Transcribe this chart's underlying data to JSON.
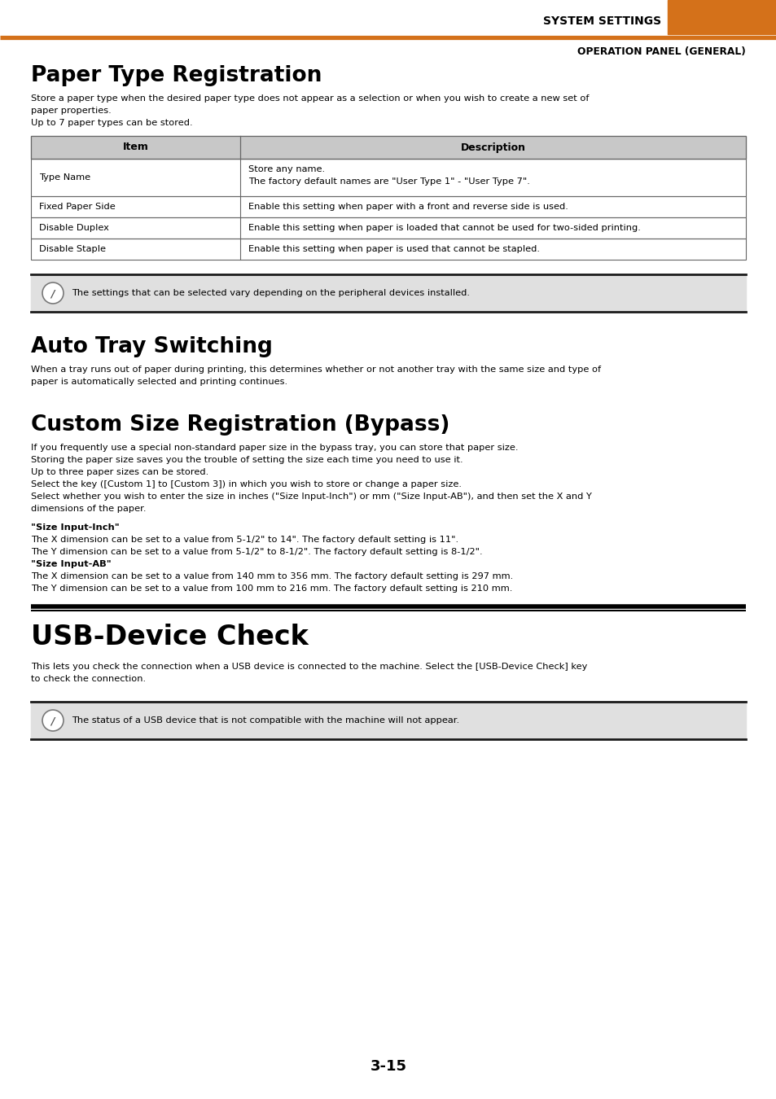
{
  "bg_color": "#ffffff",
  "orange_color": "#D4711A",
  "gray_header": "#C8C8C8",
  "gray_note_bg": "#E0E0E0",
  "table_border": "#666666",
  "dark_line": "#1a1a1a",
  "system_settings_text": "SYSTEM SETTINGS",
  "operation_panel_text": "OPERATION PANEL (GENERAL)",
  "section1_title": "Paper Type Registration",
  "section1_body_lines": [
    "Store a paper type when the desired paper type does not appear as a selection or when you wish to create a new set of",
    "paper properties.",
    "Up to 7 paper types can be stored."
  ],
  "table_headers": [
    "Item",
    "Description"
  ],
  "table_rows": [
    [
      "Type Name",
      "Store any name.\nThe factory default names are \"User Type 1\" - \"User Type 7\"."
    ],
    [
      "Fixed Paper Side",
      "Enable this setting when paper with a front and reverse side is used."
    ],
    [
      "Disable Duplex",
      "Enable this setting when paper is loaded that cannot be used for two-sided printing."
    ],
    [
      "Disable Staple",
      "Enable this setting when paper is used that cannot be stapled."
    ]
  ],
  "note1": "The settings that can be selected vary depending on the peripheral devices installed.",
  "section2_title": "Auto Tray Switching",
  "section2_body_lines": [
    "When a tray runs out of paper during printing, this determines whether or not another tray with the same size and type of",
    "paper is automatically selected and printing continues."
  ],
  "section3_title": "Custom Size Registration (Bypass)",
  "section3_body_lines": [
    "If you frequently use a special non-standard paper size in the bypass tray, you can store that paper size.",
    "Storing the paper size saves you the trouble of setting the size each time you need to use it.",
    "Up to three paper sizes can be stored.",
    "Select the key ([Custom 1] to [Custom 3]) in which you wish to store or change a paper size.",
    "Select whether you wish to enter the size in inches (\"Size Input-Inch\") or mm (\"Size Input-AB\"), and then set the X and Y",
    "dimensions of the paper."
  ],
  "size_inch_header": "\"Size Input-Inch\"",
  "size_inch_body_lines": [
    "The X dimension can be set to a value from 5-1/2\" to 14\". The factory default setting is 11\".",
    "The Y dimension can be set to a value from 5-1/2\" to 8-1/2\". The factory default setting is 8-1/2\"."
  ],
  "size_ab_header": "\"Size Input-AB\"",
  "size_ab_body_lines": [
    "The X dimension can be set to a value from 140 mm to 356 mm. The factory default setting is 297 mm.",
    "The Y dimension can be set to a value from 100 mm to 216 mm. The factory default setting is 210 mm."
  ],
  "section4_title": "USB-Device Check",
  "section4_body_lines": [
    "This lets you check the connection when a USB device is connected to the machine. Select the [USB-Device Check] key",
    "to check the connection."
  ],
  "note2": "The status of a USB device that is not compatible with the machine will not appear.",
  "page_number": "3-15"
}
